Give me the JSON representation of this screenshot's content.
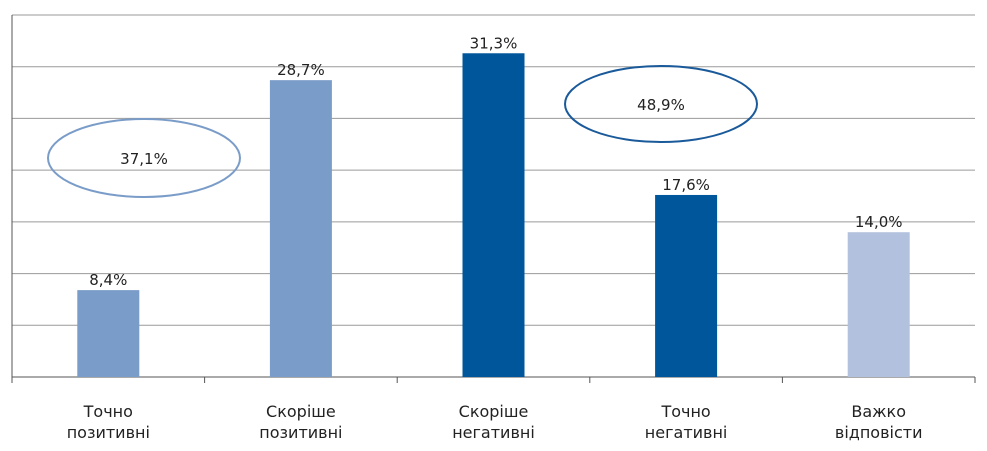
{
  "chart_data": {
    "type": "bar",
    "title": "",
    "xlabel": "",
    "ylabel": "",
    "ylim": [
      0,
      35
    ],
    "grid": true,
    "categories": [
      [
        "Точно",
        "позитивні"
      ],
      [
        "Скоріше",
        "позитивні"
      ],
      [
        "Скоріше",
        "негативні"
      ],
      [
        "Точно",
        "негативні"
      ],
      [
        "Важко",
        "відповісти"
      ]
    ],
    "values": [
      8.4,
      28.7,
      31.3,
      17.6,
      14.0
    ],
    "value_labels": [
      "8,4%",
      "28,7%",
      "31,3%",
      "17,6%",
      "14,0%"
    ],
    "colors": [
      "#7a9cc8",
      "#7a9cc8",
      "#00569b",
      "#00569b",
      "#b2c2de"
    ],
    "annotations": [
      {
        "text": "37,1%",
        "spans": [
          0,
          1
        ],
        "color": "#7a9cc8"
      },
      {
        "text": "48,9%",
        "spans": [
          2,
          3
        ],
        "color": "#1a5a9a"
      }
    ]
  }
}
